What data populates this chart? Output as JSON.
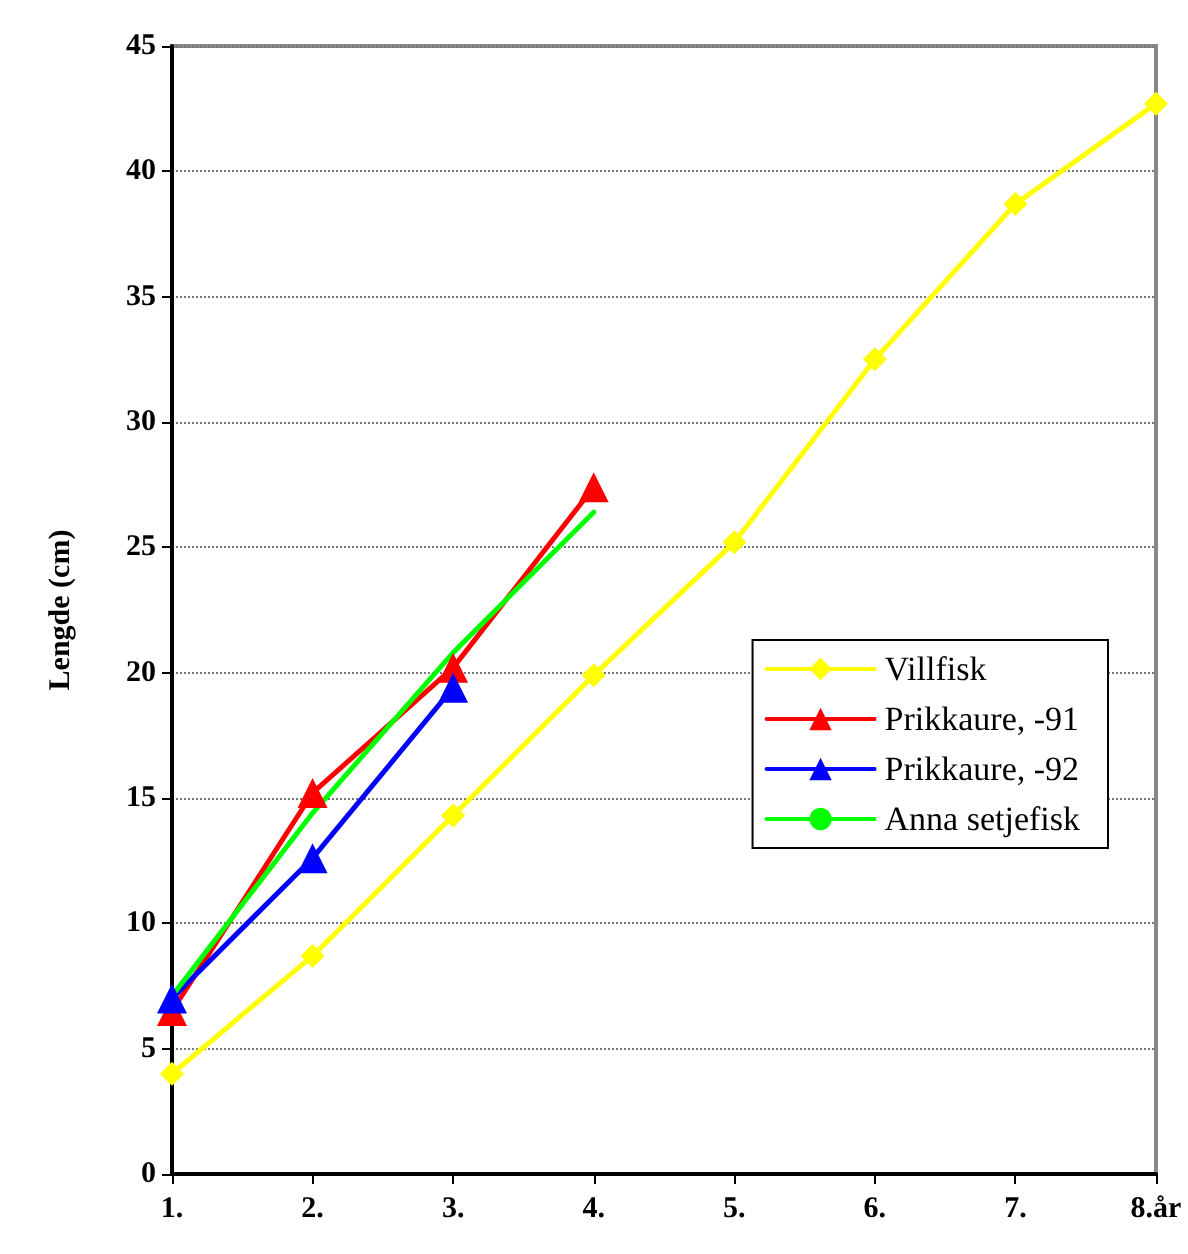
{
  "chart_data": {
    "type": "line",
    "ylabel": "Lengde (cm)",
    "categories": [
      "1.",
      "2.",
      "3.",
      "4.",
      "5.",
      "6.",
      "7.",
      "8.år"
    ],
    "series": [
      {
        "name": "Villfisk",
        "color": "#ffff00",
        "marker": "diamond",
        "values": [
          4.0,
          8.7,
          14.3,
          19.9,
          25.2,
          32.5,
          38.7,
          42.7
        ]
      },
      {
        "name": "Prikkaure, -91",
        "color": "#ff0000",
        "marker": "triangle",
        "values": [
          6.5,
          15.2,
          20.2,
          27.4,
          null,
          null,
          null,
          null
        ]
      },
      {
        "name": "Prikkaure, -92",
        "color": "#0000ff",
        "marker": "triangle",
        "values": [
          7.0,
          12.6,
          19.4,
          null,
          null,
          null,
          null,
          null
        ]
      },
      {
        "name": "Anna setjefisk",
        "color": "#00ff00",
        "marker": "none",
        "values": [
          7.1,
          14.4,
          20.8,
          26.4,
          null,
          null,
          null,
          null
        ]
      }
    ],
    "ylim": [
      0,
      45
    ],
    "yticks": [
      0,
      5,
      10,
      15,
      20,
      25,
      30,
      35,
      40,
      45
    ],
    "grid": "y",
    "legend": "right",
    "line_style": "solid"
  }
}
